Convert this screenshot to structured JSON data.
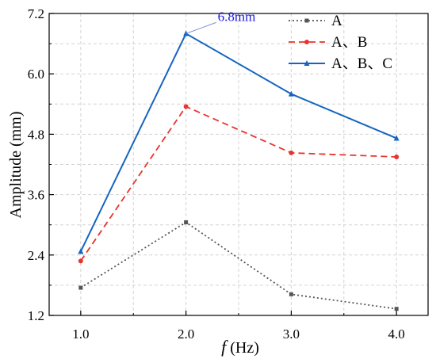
{
  "chart_data": {
    "type": "line",
    "x": [
      1.0,
      2.0,
      3.0,
      4.0
    ],
    "x_tick_labels": [
      "1.0",
      "2.0",
      "3.0",
      "4.0"
    ],
    "y_tick_labels": [
      "1.2",
      "2.4",
      "3.6",
      "4.8",
      "6.0",
      "7.2"
    ],
    "xlim": [
      0.7,
      4.3
    ],
    "ylim": [
      1.2,
      7.2
    ],
    "xlabel_italic": "f",
    "xlabel_rest": " (Hz)",
    "ylabel": "Amplitude (mm)",
    "grid": true,
    "legend_placement": "top-right",
    "series": [
      {
        "name": "A",
        "values": [
          1.75,
          3.05,
          1.62,
          1.33
        ],
        "color": "#555555",
        "dash": "dotted",
        "marker": "square"
      },
      {
        "name": "A、B",
        "values": [
          2.28,
          5.35,
          4.43,
          4.35
        ],
        "color": "#e8342f",
        "dash": "dashed",
        "marker": "circle"
      },
      {
        "name": "A、B、C",
        "values": [
          2.47,
          6.8,
          5.6,
          4.72
        ],
        "color": "#1565c0",
        "dash": "solid",
        "marker": "triangle"
      }
    ],
    "annotation": {
      "text": "6.8mm",
      "series": 2,
      "point": 1,
      "color": "#1a1ae6"
    }
  }
}
